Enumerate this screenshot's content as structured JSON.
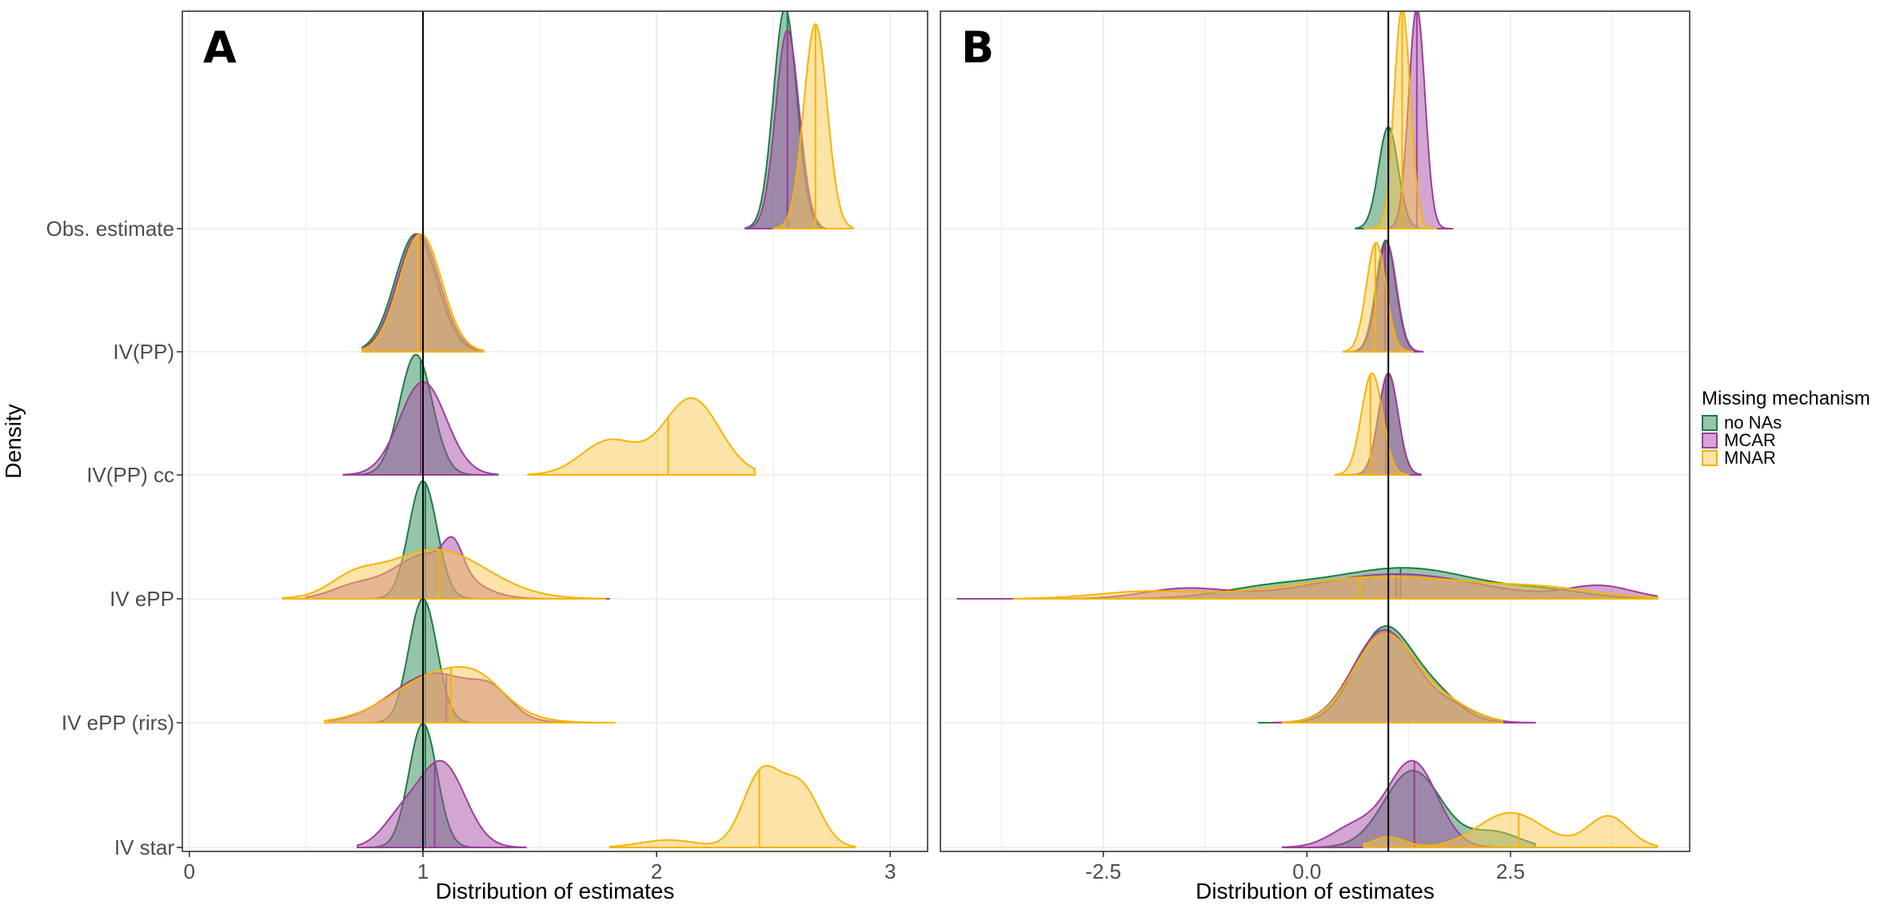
{
  "chart_data": {
    "type": "ridgeline",
    "ylabel": "Density",
    "legend": {
      "title": "Missing mechanism",
      "position": "right",
      "entries": [
        {
          "label": "no NAs",
          "fill": "#2e8b57",
          "stroke": "#1f7a45"
        },
        {
          "label": "MCAR",
          "fill": "#a64ca6",
          "stroke": "#9b3f9b"
        },
        {
          "label": "MNAR",
          "fill": "#f9c74f",
          "stroke": "#f5b400"
        }
      ]
    },
    "categories": [
      "IV star",
      "IV ePP (rirs)",
      "IV ePP",
      "IV(PP) cc",
      "IV(PP)",
      "Obs. estimate"
    ],
    "panels": [
      {
        "tag": "A",
        "xlabel": "Distribution of estimates",
        "xlim": [
          -0.03,
          3.16
        ],
        "xticks": [
          0,
          1,
          2,
          3
        ],
        "xtick_labels": [
          "0",
          "1",
          "2",
          "3"
        ],
        "reference_x": 1,
        "series": [
          {
            "name": "no NAs",
            "ridges": [
              {
                "row": 0,
                "peak": 0.98,
                "height": 1.0,
                "median": 1.01,
                "comps": [
                  {
                    "m": 1.0,
                    "s": 0.06,
                    "w": 1
                  }
                ],
                "range": [
                  0.76,
                  1.3
                ]
              },
              {
                "row": 1,
                "peak": 0.98,
                "height": 1.0,
                "median": 1.01,
                "comps": [
                  {
                    "m": 1.0,
                    "s": 0.06,
                    "w": 1
                  }
                ],
                "range": [
                  0.78,
                  1.3
                ]
              },
              {
                "row": 2,
                "peak": 0.98,
                "height": 0.95,
                "median": 1.01,
                "comps": [
                  {
                    "m": 1.0,
                    "s": 0.06,
                    "w": 1
                  }
                ],
                "range": [
                  0.74,
                  1.3
                ]
              },
              {
                "row": 3,
                "peak": 0.98,
                "height": 0.97,
                "median": 0.99,
                "comps": [
                  {
                    "m": 0.97,
                    "s": 0.07,
                    "w": 1
                  }
                ],
                "range": [
                  0.72,
                  1.28
                ]
              },
              {
                "row": 4,
                "peak": 0.98,
                "height": 0.95,
                "median": 0.99,
                "comps": [
                  {
                    "m": 0.97,
                    "s": 0.09,
                    "w": 1
                  }
                ],
                "range": [
                  0.74,
                  1.25
                ]
              },
              {
                "row": 5,
                "peak": 2.55,
                "height": 1.78,
                "median": 2.56,
                "comps": [
                  {
                    "m": 2.55,
                    "s": 0.05,
                    "w": 1
                  }
                ],
                "range": [
                  2.38,
                  2.72
                ]
              }
            ]
          },
          {
            "name": "MCAR",
            "ridges": [
              {
                "row": 0,
                "peak": 1.08,
                "height": 0.7,
                "median": 1.05,
                "comps": [
                  {
                    "m": 1.08,
                    "s": 0.1,
                    "w": 1
                  },
                  {
                    "m": 0.9,
                    "s": 0.08,
                    "w": 0.3
                  }
                ],
                "range": [
                  0.72,
                  1.44
                ]
              },
              {
                "row": 1,
                "peak": 1.05,
                "height": 0.4,
                "median": 1.1,
                "comps": [
                  {
                    "m": 1.05,
                    "s": 0.18,
                    "w": 1
                  },
                  {
                    "m": 1.3,
                    "s": 0.08,
                    "w": 0.4
                  }
                ],
                "range": [
                  0.6,
                  1.75
                ]
              },
              {
                "row": 2,
                "peak": 1.13,
                "height": 0.5,
                "median": 1.07,
                "comps": [
                  {
                    "m": 1.02,
                    "s": 0.15,
                    "w": 1
                  },
                  {
                    "m": 1.13,
                    "s": 0.04,
                    "w": 0.6
                  },
                  {
                    "m": 0.7,
                    "s": 0.1,
                    "w": 0.25
                  }
                ],
                "range": [
                  0.5,
                  1.8
                ]
              },
              {
                "row": 3,
                "peak": 1.02,
                "height": 0.75,
                "median": 0.99,
                "comps": [
                  {
                    "m": 1.0,
                    "s": 0.1,
                    "w": 1
                  }
                ],
                "range": [
                  0.66,
                  1.32
                ]
              },
              {
                "row": 4,
                "peak": 0.98,
                "height": 0.95,
                "median": 0.99,
                "comps": [
                  {
                    "m": 0.98,
                    "s": 0.09,
                    "w": 1
                  }
                ],
                "range": [
                  0.74,
                  1.25
                ]
              },
              {
                "row": 5,
                "peak": 2.56,
                "height": 1.6,
                "median": 2.56,
                "comps": [
                  {
                    "m": 2.56,
                    "s": 0.05,
                    "w": 1
                  }
                ],
                "range": [
                  2.38,
                  2.7
                ]
              }
            ]
          },
          {
            "name": "MNAR",
            "ridges": [
              {
                "row": 0,
                "peak": 2.45,
                "height": 0.66,
                "median": 2.44,
                "comps": [
                  {
                    "m": 2.45,
                    "s": 0.08,
                    "w": 1
                  },
                  {
                    "m": 2.62,
                    "s": 0.08,
                    "w": 0.8
                  },
                  {
                    "m": 2.05,
                    "s": 0.12,
                    "w": 0.1
                  }
                ],
                "range": [
                  1.8,
                  2.85
                ]
              },
              {
                "row": 1,
                "peak": 1.08,
                "height": 0.45,
                "median": 1.12,
                "comps": [
                  {
                    "m": 1.08,
                    "s": 0.2,
                    "w": 1
                  },
                  {
                    "m": 1.25,
                    "s": 0.1,
                    "w": 0.3
                  }
                ],
                "range": [
                  0.58,
                  1.82
                ]
              },
              {
                "row": 2,
                "peak": 1.05,
                "height": 0.4,
                "median": 1.07,
                "comps": [
                  {
                    "m": 1.05,
                    "s": 0.22,
                    "w": 1
                  },
                  {
                    "m": 0.7,
                    "s": 0.1,
                    "w": 0.3
                  }
                ],
                "range": [
                  0.4,
                  1.78
                ]
              },
              {
                "row": 3,
                "peak": 2.15,
                "height": 0.62,
                "median": 2.05,
                "comps": [
                  {
                    "m": 2.15,
                    "s": 0.12,
                    "w": 1
                  },
                  {
                    "m": 1.8,
                    "s": 0.12,
                    "w": 0.45
                  }
                ],
                "range": [
                  1.45,
                  2.42
                ]
              },
              {
                "row": 4,
                "peak": 0.99,
                "height": 0.95,
                "median": 0.98,
                "comps": [
                  {
                    "m": 0.99,
                    "s": 0.09,
                    "w": 1
                  }
                ],
                "range": [
                  0.74,
                  1.26
                ]
              },
              {
                "row": 5,
                "peak": 2.68,
                "height": 1.65,
                "median": 2.68,
                "comps": [
                  {
                    "m": 2.68,
                    "s": 0.05,
                    "w": 1
                  }
                ],
                "range": [
                  2.5,
                  2.84
                ]
              }
            ]
          }
        ]
      },
      {
        "tag": "B",
        "xlabel": "Distribution of estimates",
        "xlim": [
          -4.5,
          4.7
        ],
        "xticks": [
          -2.5,
          0.0,
          2.5
        ],
        "xtick_labels": [
          "-2.5",
          "0.0",
          "2.5"
        ],
        "reference_x": 1,
        "series": [
          {
            "name": "no NAs",
            "ridges": [
              {
                "row": 0,
                "peak": 1.3,
                "height": 0.62,
                "median": 1.32,
                "comps": [
                  {
                    "m": 1.3,
                    "s": 0.35,
                    "w": 1
                  },
                  {
                    "m": 2.3,
                    "s": 0.3,
                    "w": 0.2
                  }
                ],
                "range": [
                  -0.25,
                  2.8
                ]
              },
              {
                "row": 1,
                "peak": 0.95,
                "height": 0.78,
                "median": 1.0,
                "comps": [
                  {
                    "m": 0.95,
                    "s": 0.35,
                    "w": 1
                  },
                  {
                    "m": 1.6,
                    "s": 0.3,
                    "w": 0.25
                  }
                ],
                "range": [
                  -0.6,
                  2.4
                ]
              },
              {
                "row": 2,
                "peak": 1.2,
                "height": 0.25,
                "median": 1.15,
                "comps": [
                  {
                    "m": 1.2,
                    "s": 0.9,
                    "w": 1
                  },
                  {
                    "m": -0.5,
                    "s": 0.6,
                    "w": 0.3
                  },
                  {
                    "m": 3.0,
                    "s": 0.5,
                    "w": 0.2
                  }
                ],
                "range": [
                  -3.5,
                  4.3
                ]
              },
              {
                "row": 3,
                "peak": 1.0,
                "height": 0.82,
                "median": 0.97,
                "comps": [
                  {
                    "m": 1.0,
                    "s": 0.12,
                    "w": 1
                  }
                ],
                "range": [
                  0.5,
                  1.4
                ]
              },
              {
                "row": 4,
                "peak": 0.97,
                "height": 0.9,
                "median": 0.96,
                "comps": [
                  {
                    "m": 0.97,
                    "s": 0.12,
                    "w": 1
                  }
                ],
                "range": [
                  0.55,
                  1.42
                ]
              },
              {
                "row": 5,
                "peak": 1.0,
                "height": 0.82,
                "median": 1.0,
                "comps": [
                  {
                    "m": 1.0,
                    "s": 0.12,
                    "w": 1
                  }
                ],
                "range": [
                  0.6,
                  1.4
                ]
              }
            ]
          },
          {
            "name": "MCAR",
            "ridges": [
              {
                "row": 0,
                "peak": 1.3,
                "height": 0.7,
                "median": 1.32,
                "comps": [
                  {
                    "m": 1.3,
                    "s": 0.3,
                    "w": 1
                  },
                  {
                    "m": 0.6,
                    "s": 0.3,
                    "w": 0.25
                  }
                ],
                "range": [
                  -0.3,
                  2.6
                ]
              },
              {
                "row": 1,
                "peak": 0.95,
                "height": 0.75,
                "median": 1.0,
                "comps": [
                  {
                    "m": 0.95,
                    "s": 0.38,
                    "w": 1
                  },
                  {
                    "m": 1.8,
                    "s": 0.3,
                    "w": 0.15
                  }
                ],
                "range": [
                  -0.4,
                  2.8
                ]
              },
              {
                "row": 2,
                "peak": 1.1,
                "height": 0.2,
                "median": 1.1,
                "comps": [
                  {
                    "m": 1.1,
                    "s": 1.0,
                    "w": 1
                  },
                  {
                    "m": -1.5,
                    "s": 0.5,
                    "w": 0.4
                  },
                  {
                    "m": 3.6,
                    "s": 0.4,
                    "w": 0.5
                  }
                ],
                "range": [
                  -4.3,
                  4.3
                ]
              },
              {
                "row": 3,
                "peak": 1.0,
                "height": 0.82,
                "median": 0.97,
                "comps": [
                  {
                    "m": 1.0,
                    "s": 0.12,
                    "w": 1
                  }
                ],
                "range": [
                  0.5,
                  1.4
                ]
              },
              {
                "row": 4,
                "peak": 0.98,
                "height": 0.88,
                "median": 0.96,
                "comps": [
                  {
                    "m": 0.98,
                    "s": 0.12,
                    "w": 1
                  }
                ],
                "range": [
                  0.55,
                  1.42
                ]
              },
              {
                "row": 5,
                "peak": 1.35,
                "height": 1.78,
                "median": 1.35,
                "comps": [
                  {
                    "m": 1.35,
                    "s": 0.1,
                    "w": 1
                  }
                ],
                "range": [
                  1.0,
                  1.8
                ]
              }
            ]
          },
          {
            "name": "MNAR",
            "ridges": [
              {
                "row": 0,
                "peak": 2.5,
                "height": 0.28,
                "median": 2.6,
                "comps": [
                  {
                    "m": 2.5,
                    "s": 0.4,
                    "w": 1
                  },
                  {
                    "m": 3.7,
                    "s": 0.25,
                    "w": 0.9
                  },
                  {
                    "m": 1.0,
                    "s": 0.2,
                    "w": 0.3
                  }
                ],
                "range": [
                  0.7,
                  4.3
                ]
              },
              {
                "row": 1,
                "peak": 0.95,
                "height": 0.72,
                "median": 1.0,
                "comps": [
                  {
                    "m": 0.95,
                    "s": 0.38,
                    "w": 1
                  },
                  {
                    "m": 1.7,
                    "s": 0.35,
                    "w": 0.2
                  }
                ],
                "range": [
                  -0.3,
                  2.4
                ]
              },
              {
                "row": 2,
                "peak": 1.0,
                "height": 0.18,
                "median": 0.65,
                "comps": [
                  {
                    "m": 1.0,
                    "s": 1.2,
                    "w": 1
                  },
                  {
                    "m": -2.0,
                    "s": 0.6,
                    "w": 0.3
                  },
                  {
                    "m": 3.0,
                    "s": 0.6,
                    "w": 0.3
                  }
                ],
                "range": [
                  -3.6,
                  4.3
                ]
              },
              {
                "row": 3,
                "peak": 0.8,
                "height": 0.82,
                "median": 0.78,
                "comps": [
                  {
                    "m": 0.8,
                    "s": 0.13,
                    "w": 1
                  }
                ],
                "range": [
                  0.35,
                  1.25
                ]
              },
              {
                "row": 4,
                "peak": 0.85,
                "height": 0.88,
                "median": 0.84,
                "comps": [
                  {
                    "m": 0.85,
                    "s": 0.12,
                    "w": 1
                  }
                ],
                "range": [
                  0.45,
                  1.3
                ]
              },
              {
                "row": 5,
                "peak": 1.17,
                "height": 1.78,
                "median": 1.17,
                "comps": [
                  {
                    "m": 1.17,
                    "s": 0.1,
                    "w": 1
                  }
                ],
                "range": [
                  0.7,
                  1.6
                ]
              }
            ]
          }
        ]
      }
    ]
  }
}
